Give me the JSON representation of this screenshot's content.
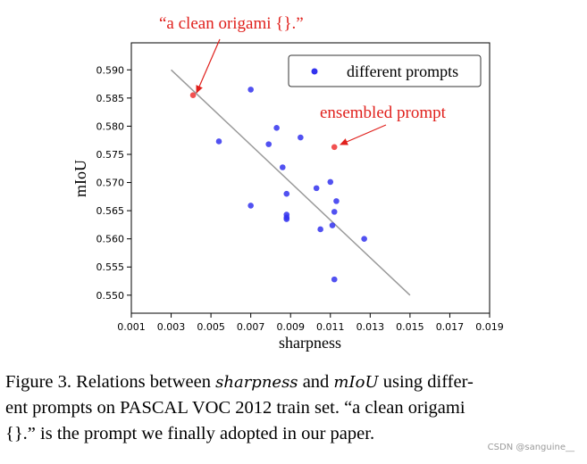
{
  "chart_data": {
    "type": "scatter",
    "xlabel": "sharpness",
    "ylabel": "mIoU",
    "xlim": [
      0.001,
      0.019
    ],
    "ylim": [
      0.5468,
      0.5948
    ],
    "xticks": [
      "0.001",
      "0.003",
      "0.005",
      "0.007",
      "0.009",
      "0.011",
      "0.013",
      "0.015",
      "0.017",
      "0.019"
    ],
    "xtick_values": [
      0.001,
      0.003,
      0.005,
      0.007,
      0.009,
      0.011,
      0.013,
      0.015,
      0.017,
      0.019
    ],
    "yticks": [
      "0.550",
      "0.555",
      "0.560",
      "0.565",
      "0.570",
      "0.575",
      "0.580",
      "0.585",
      "0.590"
    ],
    "ytick_values": [
      0.55,
      0.555,
      0.56,
      0.565,
      0.57,
      0.575,
      0.58,
      0.585,
      0.59
    ],
    "legend": {
      "label": "different prompts",
      "position": "top-right"
    },
    "series": [
      {
        "name": "different prompts",
        "color": "#3333ee",
        "points": [
          [
            0.007,
            0.5865
          ],
          [
            0.0054,
            0.5773
          ],
          [
            0.0083,
            0.5797
          ],
          [
            0.0079,
            0.5768
          ],
          [
            0.0095,
            0.578
          ],
          [
            0.0086,
            0.5727
          ],
          [
            0.011,
            0.5701
          ],
          [
            0.0103,
            0.569
          ],
          [
            0.0088,
            0.568
          ],
          [
            0.0113,
            0.5667
          ],
          [
            0.007,
            0.5659
          ],
          [
            0.0112,
            0.5648
          ],
          [
            0.0088,
            0.5643
          ],
          [
            0.0088,
            0.5638
          ],
          [
            0.0088,
            0.5635
          ],
          [
            0.0111,
            0.5624
          ],
          [
            0.0105,
            0.5617
          ],
          [
            0.0127,
            0.56
          ],
          [
            0.0112,
            0.5528
          ]
        ]
      },
      {
        "color": "#ee3333",
        "points": [
          [
            0.0041,
            0.5855
          ],
          [
            0.0112,
            0.5763
          ]
        ]
      }
    ],
    "trend_line": {
      "color": "#999999",
      "from": [
        0.003,
        0.59
      ],
      "to": [
        0.015,
        0.55
      ]
    },
    "annotations": [
      {
        "text": "“a clean origami {}.”",
        "point": [
          0.0041,
          0.5855
        ],
        "color": "#e0201c"
      },
      {
        "text": "ensembled prompt",
        "point": [
          0.0112,
          0.5763
        ],
        "color": "#e0201c"
      }
    ]
  },
  "caption": {
    "line1_a": "Figure 3. Relations between ",
    "line1_em1": "sharpness",
    "line1_b": " and ",
    "line1_em2": "mIoU",
    "line1_c": " using differ-",
    "line2": "ent prompts on PASCAL VOC 2012 train set. “a clean origami",
    "line3": "{}.” is the prompt we finally adopted in our paper."
  },
  "watermark": "CSDN @sanguine__"
}
